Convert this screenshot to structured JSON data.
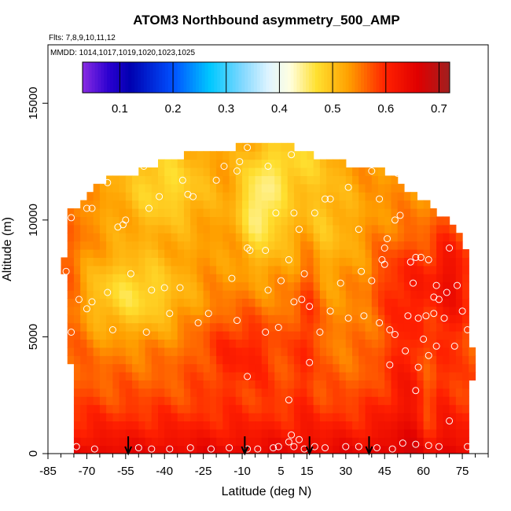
{
  "chart_data": {
    "type": "heatmap",
    "title": "ATOM3 Northbound asymmetry_500_AMP",
    "flights_label": "Flts: 7,8,9,10,11,12",
    "dates_label": "MMDD: 1014,1017,1019,1020,1023,1025",
    "xlabel": "Latitude (deg N)",
    "ylabel": "Altitude (m)",
    "xlim": [
      -85,
      85
    ],
    "ylim": [
      0,
      17500
    ],
    "x_ticks": [
      -85,
      -70,
      -55,
      -40,
      -25,
      -10,
      5,
      15,
      30,
      45,
      60,
      75
    ],
    "x_minor_ticks": [
      -80,
      -75,
      -65,
      -60,
      -50,
      -45,
      -35,
      -30,
      -20,
      -15,
      -5,
      0,
      10,
      20,
      25,
      35,
      40,
      50,
      55,
      65,
      70,
      80,
      85
    ],
    "y_ticks": [
      0,
      5000,
      10000,
      15000
    ],
    "colorbar": {
      "range": [
        0.03,
        0.72
      ],
      "ticks": [
        "0.1",
        "0.2",
        "0.3",
        "0.4",
        "0.5",
        "0.6",
        "0.7"
      ],
      "tick_values": [
        0.1,
        0.2,
        0.3,
        0.4,
        0.5,
        0.6,
        0.7
      ],
      "stops": [
        {
          "v": 0.03,
          "c": "#8a2be2"
        },
        {
          "v": 0.08,
          "c": "#2a00d0"
        },
        {
          "v": 0.12,
          "c": "#0000b0"
        },
        {
          "v": 0.2,
          "c": "#0050ff"
        },
        {
          "v": 0.27,
          "c": "#00c8ff"
        },
        {
          "v": 0.33,
          "c": "#80d8ff"
        },
        {
          "v": 0.38,
          "c": "#e0f4ff"
        },
        {
          "v": 0.42,
          "c": "#ffffe0"
        },
        {
          "v": 0.47,
          "c": "#ffe030"
        },
        {
          "v": 0.53,
          "c": "#ffa000"
        },
        {
          "v": 0.6,
          "c": "#ff2000"
        },
        {
          "v": 0.66,
          "c": "#e00000"
        },
        {
          "v": 0.72,
          "c": "#a02020"
        }
      ]
    },
    "grid": false,
    "field": {
      "lat_step": 2.5,
      "alt_step": 350,
      "top_profile": [
        {
          "lat": -77,
          "alt": 10300
        },
        {
          "lat": -70,
          "alt": 11000
        },
        {
          "lat": -63,
          "alt": 11800
        },
        {
          "lat": -50,
          "alt": 12100
        },
        {
          "lat": -38,
          "alt": 12600
        },
        {
          "lat": -25,
          "alt": 13000
        },
        {
          "lat": -12,
          "alt": 13100
        },
        {
          "lat": -7,
          "alt": 13400
        },
        {
          "lat": 0,
          "alt": 13300
        },
        {
          "lat": 12,
          "alt": 13100
        },
        {
          "lat": 22,
          "alt": 12500
        },
        {
          "lat": 40,
          "alt": 12300
        },
        {
          "lat": 50,
          "alt": 11700
        },
        {
          "lat": 60,
          "alt": 10800
        },
        {
          "lat": 72,
          "alt": 9700
        },
        {
          "lat": 78,
          "alt": 8600
        }
      ],
      "left_edge_profile": [
        {
          "alt": 0,
          "lat": -74
        },
        {
          "alt": 3000,
          "lat": -76
        },
        {
          "alt": 6000,
          "lat": -77
        },
        {
          "alt": 8000,
          "lat": -79
        },
        {
          "alt": 10300,
          "lat": -77
        }
      ],
      "right_edge_profile": [
        {
          "alt": 0,
          "lat": 78
        },
        {
          "alt": 4000,
          "lat": 79
        },
        {
          "alt": 6500,
          "lat": 78
        },
        {
          "alt": 8600,
          "lat": 77
        }
      ]
    },
    "observation_points": [
      [
        -74,
        300
      ],
      [
        -67,
        200
      ],
      [
        -50,
        250
      ],
      [
        -45,
        200
      ],
      [
        -38,
        200
      ],
      [
        -30,
        250
      ],
      [
        -22,
        200
      ],
      [
        -15,
        250
      ],
      [
        -8,
        200
      ],
      [
        -4,
        200
      ],
      [
        2,
        250
      ],
      [
        4,
        300
      ],
      [
        8,
        500
      ],
      [
        9,
        800
      ],
      [
        10,
        300
      ],
      [
        12,
        600
      ],
      [
        14,
        200
      ],
      [
        18,
        300
      ],
      [
        22,
        250
      ],
      [
        30,
        300
      ],
      [
        35,
        300
      ],
      [
        42,
        250
      ],
      [
        48,
        200
      ],
      [
        52,
        450
      ],
      [
        57,
        400
      ],
      [
        62,
        350
      ],
      [
        66,
        300
      ],
      [
        70,
        1400
      ],
      [
        77,
        300
      ],
      [
        8,
        2300
      ],
      [
        -8,
        3300
      ],
      [
        57,
        2700
      ],
      [
        16,
        3900
      ],
      [
        47,
        3800
      ],
      [
        58,
        3700
      ],
      [
        62,
        4200
      ],
      [
        65,
        4600
      ],
      [
        60,
        4900
      ],
      [
        53,
        4400
      ],
      [
        -76,
        5200
      ],
      [
        -60,
        5300
      ],
      [
        -47,
        5200
      ],
      [
        -38,
        6000
      ],
      [
        -27,
        5600
      ],
      [
        -23,
        6000
      ],
      [
        -12,
        5700
      ],
      [
        -1,
        5200
      ],
      [
        4,
        5400
      ],
      [
        10,
        6500
      ],
      [
        13,
        6600
      ],
      [
        16,
        6300
      ],
      [
        20,
        5200
      ],
      [
        24,
        6100
      ],
      [
        31,
        5800
      ],
      [
        37,
        5900
      ],
      [
        43,
        5600
      ],
      [
        47,
        5300
      ],
      [
        49,
        5100
      ],
      [
        54,
        5900
      ],
      [
        58,
        5800
      ],
      [
        61,
        5900
      ],
      [
        64,
        6000
      ],
      [
        68,
        5800
      ],
      [
        72,
        4600
      ],
      [
        75,
        6100
      ],
      [
        77,
        5300
      ],
      [
        -73,
        6600
      ],
      [
        -70,
        6200
      ],
      [
        -68,
        6500
      ],
      [
        -62,
        6900
      ],
      [
        -53,
        7700
      ],
      [
        -45,
        7000
      ],
      [
        -40,
        7100
      ],
      [
        -34,
        7100
      ],
      [
        -14,
        7500
      ],
      [
        0,
        7000
      ],
      [
        5,
        7400
      ],
      [
        8,
        8300
      ],
      [
        14,
        7700
      ],
      [
        28,
        7300
      ],
      [
        36,
        7800
      ],
      [
        40,
        7400
      ],
      [
        45,
        8100
      ],
      [
        55,
        8200
      ],
      [
        56,
        7300
      ],
      [
        64,
        6700
      ],
      [
        66,
        6600
      ],
      [
        69,
        6900
      ],
      [
        70,
        8800
      ],
      [
        73,
        7200
      ],
      [
        -78,
        7800
      ],
      [
        -76,
        10100
      ],
      [
        -70,
        10500
      ],
      [
        -68,
        10500
      ],
      [
        -58,
        9700
      ],
      [
        -56,
        9800
      ],
      [
        -55,
        10000
      ],
      [
        -46,
        10500
      ],
      [
        -42,
        11000
      ],
      [
        -31,
        11100
      ],
      [
        -29,
        11000
      ],
      [
        -20,
        11700
      ],
      [
        -12,
        12100
      ],
      [
        -8,
        8800
      ],
      [
        -7,
        8700
      ],
      [
        -1,
        8700
      ],
      [
        3,
        10300
      ],
      [
        10,
        10300
      ],
      [
        12,
        9600
      ],
      [
        18,
        10300
      ],
      [
        22,
        10900
      ],
      [
        24,
        10900
      ],
      [
        31,
        11400
      ],
      [
        35,
        9600
      ],
      [
        40,
        12100
      ],
      [
        43,
        10900
      ],
      [
        45,
        8800
      ],
      [
        44,
        8300
      ],
      [
        46,
        9200
      ],
      [
        49,
        10000
      ],
      [
        51,
        10200
      ],
      [
        57,
        8400
      ],
      [
        59,
        8400
      ],
      [
        62,
        8300
      ],
      [
        65,
        7200
      ],
      [
        -62,
        11600
      ],
      [
        -48,
        12300
      ],
      [
        -33,
        11700
      ],
      [
        -17,
        12300
      ],
      [
        -11,
        12500
      ],
      [
        -8,
        13100
      ],
      [
        0,
        12300
      ],
      [
        9,
        12800
      ],
      [
        50,
        12000
      ]
    ],
    "arrow_markers_lat": [
      -54,
      -9,
      16,
      39
    ],
    "description": "Heat map of asymmetry amplitude vs latitude and altitude; high values (red) near the surface and toward the northern latitudes, moderate values (orange/yellow) aloft."
  },
  "palette": {
    "points": "#ffffff",
    "arrows": "#000000",
    "axes": "#000000",
    "colorbar_outline": "#000000"
  }
}
